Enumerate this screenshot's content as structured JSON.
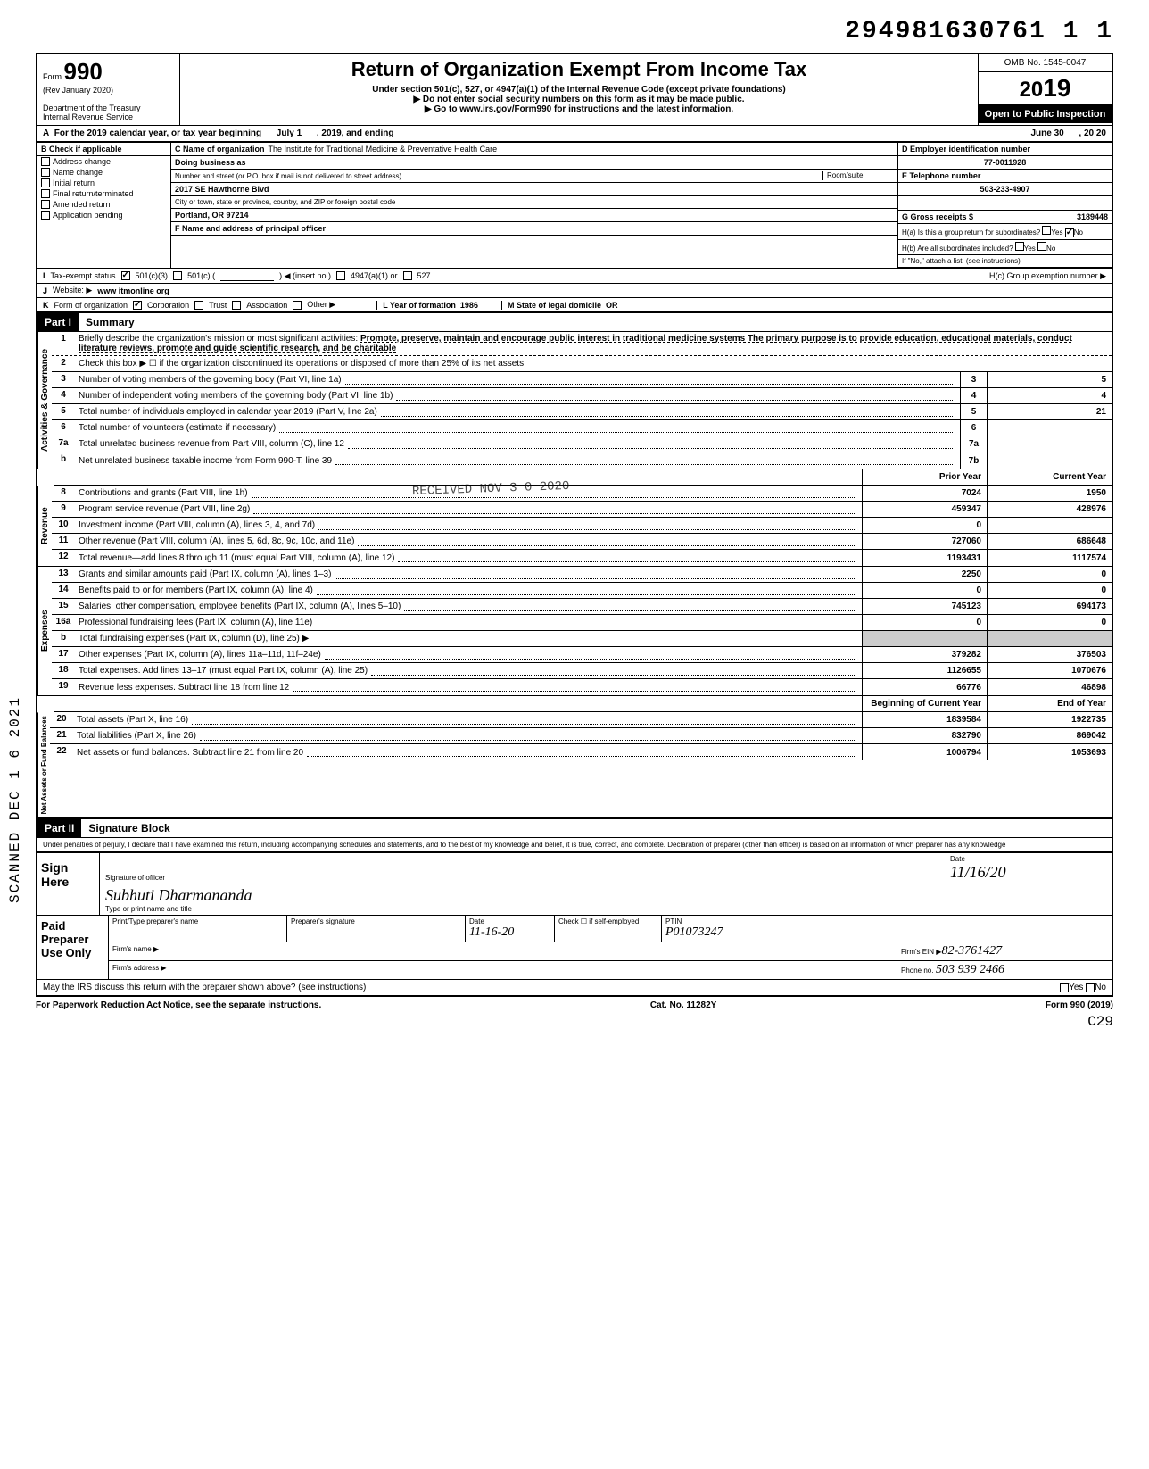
{
  "top_number": "294981630761 1   1",
  "scanned_stamp": "SCANNED DEC 1 6 2021",
  "header": {
    "form_label": "Form",
    "form_number": "990",
    "rev": "(Rev January 2020)",
    "dept": "Department of the Treasury",
    "irs": "Internal Revenue Service",
    "title": "Return of Organization Exempt From Income Tax",
    "subtitle": "Under section 501(c), 527, or 4947(a)(1) of the Internal Revenue Code (except private foundations)",
    "note1": "▶ Do not enter social security numbers on this form as it may be made public.",
    "note2": "▶ Go to www.irs.gov/Form990 for instructions and the latest information.",
    "omb": "OMB No. 1545-0047",
    "year_prefix": "20",
    "year": "19",
    "open": "Open to Public Inspection"
  },
  "rowA": {
    "label": "A",
    "text1": "For the 2019 calendar year, or tax year beginning",
    "begin": "July 1",
    "mid": ", 2019, and ending",
    "end": "June 30",
    "endyear": ", 20  20"
  },
  "colB": {
    "hdr": "B  Check if applicable",
    "items": [
      "Address change",
      "Name change",
      "Initial return",
      "Final return/terminated",
      "Amended return",
      "Application pending"
    ]
  },
  "colC": {
    "name_lbl": "C Name of organization",
    "name": "The Institute for Traditional Medicine & Preventative Health Care",
    "dba_lbl": "Doing business as",
    "dba": "",
    "addr_lbl": "Number and street (or P.O. box if mail is not delivered to street address)",
    "addr": "2017 SE Hawthorne Blvd",
    "room_lbl": "Room/suite",
    "city_lbl": "City or town, state or province, country, and ZIP or foreign postal code",
    "city": "Portland, OR 97214",
    "officer_lbl": "F Name and address of principal officer"
  },
  "colD": {
    "ein_lbl": "D Employer identification number",
    "ein": "77-0011928",
    "tel_lbl": "E Telephone number",
    "tel": "503-233-4907",
    "gross_lbl": "G Gross receipts $",
    "gross": "3189448",
    "h_a": "H(a) Is this a group return for subordinates?",
    "h_b": "H(b) Are all subordinates included?",
    "h_note": "If \"No,\" attach a list. (see instructions)",
    "h_c": "H(c) Group exemption number ▶",
    "yes": "Yes",
    "no": "No"
  },
  "rowI": {
    "lbl": "I",
    "text": "Tax-exempt status",
    "c3": "501(c)(3)",
    "c": "501(c) (",
    "insert": ")  ◀ (insert no )",
    "a1": "4947(a)(1) or",
    "527": "527"
  },
  "rowJ": {
    "lbl": "J",
    "text": "Website: ▶",
    "val": "www itmonline org"
  },
  "rowK": {
    "lbl": "K",
    "text": "Form of organization",
    "corp": "Corporation",
    "trust": "Trust",
    "assoc": "Association",
    "other": "Other ▶",
    "L": "L Year of formation",
    "Lval": "1986",
    "M": "M State of legal domicile",
    "Mval": "OR"
  },
  "part1": {
    "hdr": "Part I",
    "title": "Summary",
    "line1_num": "1",
    "line1": "Briefly describe the organization's mission or most significant activities:",
    "line1_val": "Promote, preserve, maintain and encourage public interest in traditional medicine systems  The primary purpose is to provide education, educational materials, conduct literature reviews, promote and guide scientific research, and be charitable",
    "line2_num": "2",
    "line2": "Check this box ▶ ☐ if the organization discontinued its operations or disposed of more than 25% of its net assets.",
    "vlabel_gov": "Activities & Governance",
    "vlabel_rev": "Revenue",
    "vlabel_exp": "Expenses",
    "vlabel_net": "Net Assets or Fund Balances",
    "lines_gov": [
      {
        "n": "3",
        "d": "Number of voting members of the governing body (Part VI, line 1a)",
        "box": "3",
        "v": "5"
      },
      {
        "n": "4",
        "d": "Number of independent voting members of the governing body (Part VI, line 1b)",
        "box": "4",
        "v": "4"
      },
      {
        "n": "5",
        "d": "Total number of individuals employed in calendar year 2019 (Part V, line 2a)",
        "box": "5",
        "v": "21"
      },
      {
        "n": "6",
        "d": "Total number of volunteers (estimate if necessary)",
        "box": "6",
        "v": ""
      },
      {
        "n": "7a",
        "d": "Total unrelated business revenue from Part VIII, column (C), line 12",
        "box": "7a",
        "v": ""
      },
      {
        "n": "b",
        "d": "Net unrelated business taxable income from Form 990-T, line 39",
        "box": "7b",
        "v": ""
      }
    ],
    "col_prior": "Prior Year",
    "col_curr": "Current Year",
    "lines_rev": [
      {
        "n": "8",
        "d": "Contributions and grants (Part VIII, line 1h)",
        "p": "7024",
        "c": "1950"
      },
      {
        "n": "9",
        "d": "Program service revenue (Part VIII, line 2g)",
        "p": "459347",
        "c": "428976"
      },
      {
        "n": "10",
        "d": "Investment income (Part VIII, column (A), lines 3, 4, and 7d)",
        "p": "0",
        "c": ""
      },
      {
        "n": "11",
        "d": "Other revenue (Part VIII, column (A), lines 5, 6d, 8c, 9c, 10c, and 11e)",
        "p": "727060",
        "c": "686648"
      },
      {
        "n": "12",
        "d": "Total revenue—add lines 8 through 11 (must equal Part VIII, column (A), line 12)",
        "p": "1193431",
        "c": "1117574"
      }
    ],
    "lines_exp": [
      {
        "n": "13",
        "d": "Grants and similar amounts paid (Part IX, column (A), lines 1–3)",
        "p": "2250",
        "c": "0"
      },
      {
        "n": "14",
        "d": "Benefits paid to or for members (Part IX, column (A), line 4)",
        "p": "0",
        "c": "0"
      },
      {
        "n": "15",
        "d": "Salaries, other compensation, employee benefits (Part IX, column (A), lines 5–10)",
        "p": "745123",
        "c": "694173"
      },
      {
        "n": "16a",
        "d": "Professional fundraising fees (Part IX, column (A),  line 11e)",
        "p": "0",
        "c": "0"
      },
      {
        "n": "b",
        "d": "Total fundraising expenses (Part IX, column (D), line 25) ▶",
        "p": "",
        "c": "",
        "shade": true
      },
      {
        "n": "17",
        "d": "Other expenses (Part IX, column (A), lines 11a–11d, 11f–24e)",
        "p": "379282",
        "c": "376503"
      },
      {
        "n": "18",
        "d": "Total expenses. Add lines 13–17 (must equal Part IX, column (A), line 25)",
        "p": "1126655",
        "c": "1070676"
      },
      {
        "n": "19",
        "d": "Revenue less expenses. Subtract line 18 from line 12",
        "p": "66776",
        "c": "46898"
      }
    ],
    "col_begin": "Beginning of Current Year",
    "col_end": "End of Year",
    "lines_net": [
      {
        "n": "20",
        "d": "Total assets (Part X, line 16)",
        "p": "1839584",
        "c": "1922735"
      },
      {
        "n": "21",
        "d": "Total liabilities (Part X, line 26)",
        "p": "832790",
        "c": "869042"
      },
      {
        "n": "22",
        "d": "Net assets or fund balances. Subtract line 21 from line 20",
        "p": "1006794",
        "c": "1053693"
      }
    ]
  },
  "part2": {
    "hdr": "Part II",
    "title": "Signature Block",
    "perjury": "Under penalties of perjury, I declare that I have examined this return, including accompanying schedules and statements, and to the best of my knowledge and belief, it is true, correct, and complete. Declaration of preparer (other than officer) is based on all information of which preparer has any knowledge",
    "sign": "Sign Here",
    "sig_officer": "Signature of officer",
    "date": "Date",
    "date_val": "11/16/20",
    "type_name": "Type or print name and title",
    "name_val": "Subhuti  Dharmananda",
    "paid": "Paid Preparer Use Only",
    "prep_name": "Print/Type preparer's name",
    "prep_sig": "Preparer's signature",
    "prep_date": "Date",
    "prep_date_val": "11-16-20",
    "check_self": "Check ☐ if self-employed",
    "ptin": "PTIN",
    "ptin_val": "P01073247",
    "firm_name": "Firm's name ▶",
    "firm_ein": "Firm's EIN ▶",
    "firm_ein_val": "82-3761427",
    "firm_addr": "Firm's address ▶",
    "phone": "Phone no.",
    "phone_val": "503 939 2466",
    "discuss": "May the IRS discuss this return with the preparer shown above? (see instructions)",
    "yes": "Yes",
    "no": "No"
  },
  "footer": {
    "left": "For Paperwork Reduction Act Notice, see the separate instructions.",
    "mid": "Cat. No. 11282Y",
    "right": "Form 990 (2019)",
    "cz": "C29"
  },
  "received_stamp": "RECEIVED\nNOV 3 0 2020"
}
